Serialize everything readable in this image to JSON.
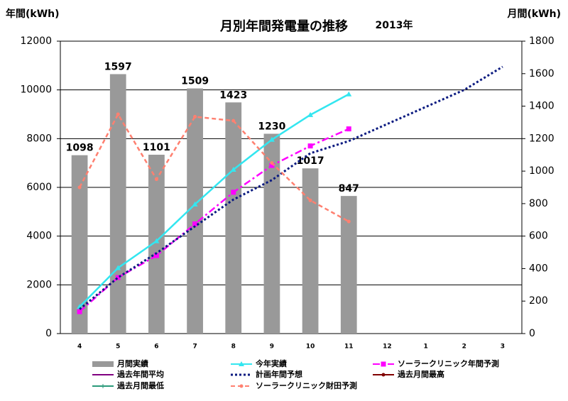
{
  "chart_data": {
    "type": "bar",
    "title": "月別年間発電量の推移",
    "subtitle": "2013年",
    "y_label": "年間(kWh)",
    "y2_label": "月間(kWh)",
    "categories": [
      "4",
      "5",
      "6",
      "7",
      "8",
      "9",
      "10",
      "11",
      "12",
      "1",
      "2",
      "3"
    ],
    "ylim": [
      0,
      12000
    ],
    "yticks": [
      0,
      2000,
      4000,
      6000,
      8000,
      10000,
      12000
    ],
    "y2lim": [
      0,
      1800
    ],
    "y2ticks": [
      0,
      200,
      400,
      600,
      800,
      1000,
      1200,
      1400,
      1600,
      1800
    ],
    "grid": true,
    "legend": "bottom",
    "series": [
      {
        "name": "月間実績",
        "type": "bar",
        "axis": "y2",
        "color": "#999999",
        "values": [
          1098,
          1597,
          1101,
          1509,
          1423,
          1230,
          1017,
          847,
          null,
          null,
          null,
          null
        ]
      },
      {
        "name": "今年実績",
        "type": "line",
        "color": "#33e6f0",
        "marker": "triangle",
        "dash": "solid",
        "values": [
          1098,
          2695,
          3796,
          5305,
          6728,
          7958,
          8975,
          9822,
          null,
          null,
          null,
          null
        ]
      },
      {
        "name": "ソーラークリニック年間予測",
        "type": "line",
        "color": "#ff00ff",
        "marker": "square",
        "dash": "dashdot",
        "values": [
          900,
          2300,
          3200,
          4500,
          5800,
          6900,
          7700,
          8400,
          null,
          null,
          null,
          null
        ]
      },
      {
        "name": "過去年間平均",
        "type": "line",
        "color": "#800080",
        "marker": "none",
        "dash": "solid",
        "values": [
          null,
          null,
          null,
          null,
          null,
          null,
          null,
          null,
          null,
          null,
          null,
          null
        ]
      },
      {
        "name": "計画年間予想",
        "type": "line",
        "color": "#0a1a80",
        "marker": "none",
        "dash": "dotted",
        "values": [
          1000,
          2300,
          3300,
          4400,
          5500,
          6300,
          7400,
          7900,
          8600,
          9300,
          10000,
          10950
        ]
      },
      {
        "name": "過去月間最高",
        "type": "line",
        "color": "#800000",
        "marker": "circle",
        "dash": "solid",
        "values": [
          null,
          null,
          null,
          null,
          null,
          null,
          null,
          null,
          null,
          null,
          null,
          null
        ]
      },
      {
        "name": "過去月間最低",
        "type": "line",
        "color": "#2a9a7a",
        "marker": "plus",
        "dash": "solid",
        "values": [
          null,
          null,
          null,
          null,
          null,
          null,
          null,
          null,
          null,
          null,
          null,
          null
        ]
      },
      {
        "name": "ソーラークリニック財田予測",
        "type": "line",
        "axis": "y2",
        "color": "#ff8070",
        "marker": "circle",
        "dash": "dashed",
        "values": [
          900,
          1350,
          950,
          1335,
          1310,
          1050,
          820,
          690,
          null,
          null,
          null,
          null
        ]
      }
    ]
  }
}
